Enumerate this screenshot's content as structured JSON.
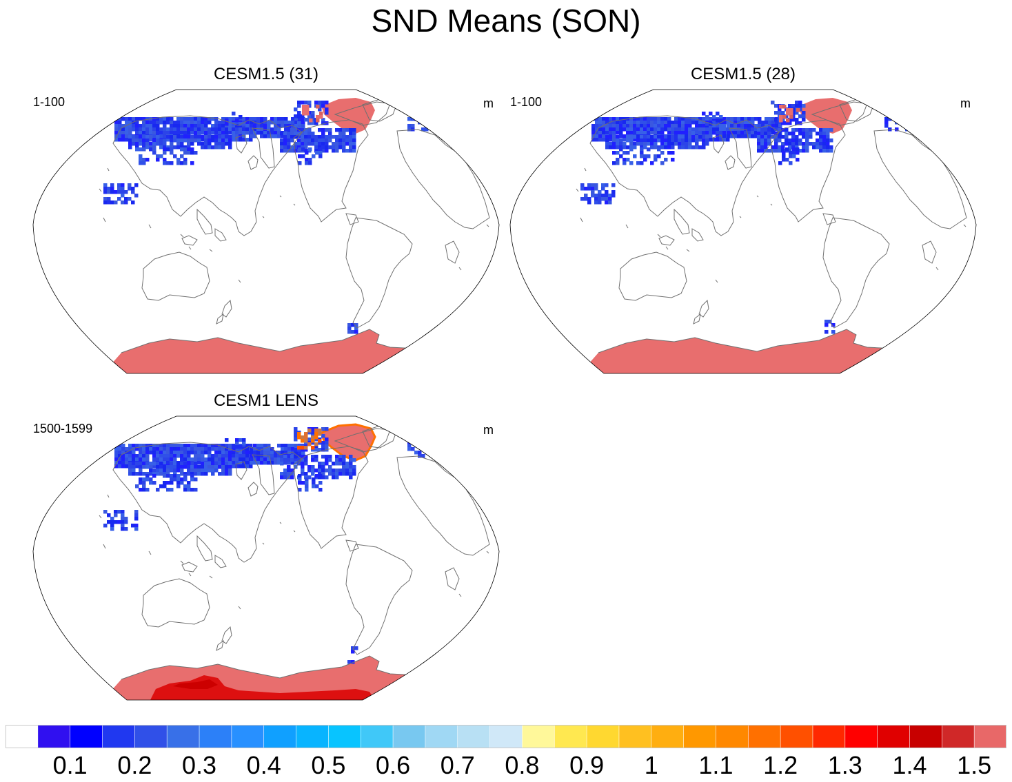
{
  "title": "SND Means (SON)",
  "panels": [
    {
      "title": "CESM1.5 (31)",
      "left_label": "1-100",
      "right_label": "m",
      "variant": "a"
    },
    {
      "title": "CESM1.5 (28)",
      "left_label": "1-100",
      "right_label": "m",
      "variant": "b"
    },
    {
      "title": "CESM1 LENS",
      "left_label": "1500-1599",
      "right_label": "m",
      "variant": "c"
    }
  ],
  "colorbar": {
    "colors": [
      "#ffffff",
      "#3010f0",
      "#0000ff",
      "#2038f0",
      "#3050e8",
      "#3870e8",
      "#2c80f8",
      "#2890ff",
      "#10a0ff",
      "#08b4ff",
      "#08c4ff",
      "#40c8f8",
      "#78c8f0",
      "#a0d8f4",
      "#b8e0f4",
      "#d0e8f8",
      "#fff89a",
      "#ffe850",
      "#ffd830",
      "#ffc020",
      "#ffae10",
      "#ff9800",
      "#ff8800",
      "#ff7000",
      "#ff5000",
      "#ff2800",
      "#ff0000",
      "#e00000",
      "#c80000",
      "#d02828",
      "#e86868"
    ],
    "labels": [
      "0.1",
      "0.2",
      "0.3",
      "0.4",
      "0.5",
      "0.6",
      "0.7",
      "0.8",
      "0.9",
      "1",
      "1.1",
      "1.2",
      "1.3",
      "1.4",
      "1.5"
    ]
  }
}
